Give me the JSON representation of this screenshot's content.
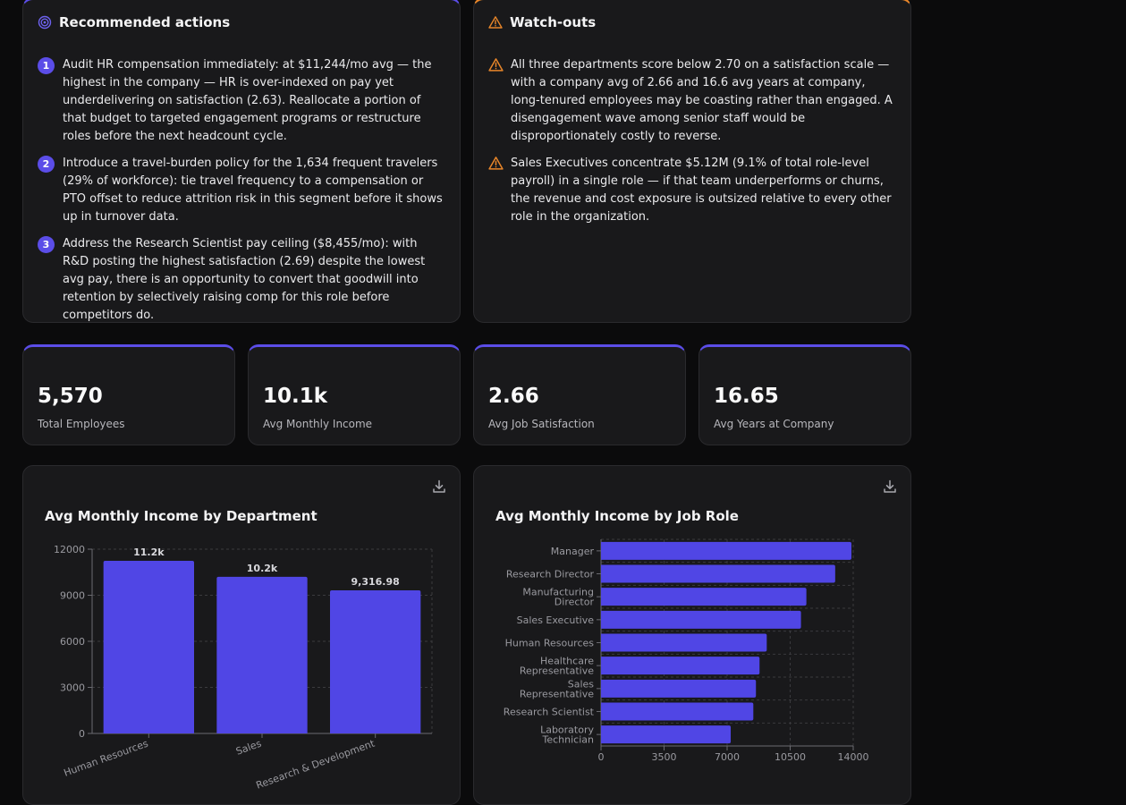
{
  "recommended": {
    "title": "Recommended actions",
    "items": [
      {
        "num": "1",
        "text": "Audit HR compensation immediately: at $11,244/mo avg — the highest in the company — HR is over-indexed on pay yet underdelivering on satisfaction (2.63). Reallocate a portion of that budget to targeted engagement programs or restructure roles before the next headcount cycle."
      },
      {
        "num": "2",
        "text": "Introduce a travel-burden policy for the 1,634 frequent travelers (29% of workforce): tie travel frequency to a compensation or PTO offset to reduce attrition risk in this segment before it shows up in turnover data."
      },
      {
        "num": "3",
        "text": "Address the Research Scientist pay ceiling ($8,455/mo): with R&D posting the highest satisfaction (2.69) despite the lowest avg pay, there is an opportunity to convert that goodwill into retention by selectively raising comp for this role before competitors do."
      }
    ]
  },
  "watchouts": {
    "title": "Watch-outs",
    "items": [
      {
        "text": "All three departments score below 2.70 on a satisfaction scale — with a company avg of 2.66 and 16.6 avg years at company, long-tenured employees may be coasting rather than engaged. A disengagement wave among senior staff would be disproportionately costly to reverse."
      },
      {
        "text": "Sales Executives concentrate $5.12M (9.1% of total role-level payroll) in a single role — if that team underperforms or churns, the revenue and cost exposure is outsized relative to every other role in the organization."
      }
    ]
  },
  "kpis": [
    {
      "value": "5,570",
      "label": "Total Employees"
    },
    {
      "value": "10.1k",
      "label": "Avg Monthly Income"
    },
    {
      "value": "2.66",
      "label": "Avg Job Satisfaction"
    },
    {
      "value": "16.65",
      "label": "Avg Years at Company"
    }
  ],
  "colors": {
    "accent": "#5b4de8",
    "warning": "#e8862a",
    "bar": "#5046e5"
  },
  "chart_data": [
    {
      "type": "bar",
      "title": "Avg Monthly Income by Department",
      "categories": [
        "Human Resources",
        "Sales",
        "Research & Development"
      ],
      "values": [
        11244,
        10200,
        9316.98
      ],
      "data_labels": [
        "11.2k",
        "10.2k",
        "9,316.98"
      ],
      "ylim": [
        0,
        12000
      ],
      "yticks": [
        0,
        3000,
        6000,
        9000,
        12000
      ],
      "ytick_labels": [
        "0",
        "3000",
        "6000",
        "9000",
        "12000"
      ],
      "grid": true
    },
    {
      "type": "bar",
      "orientation": "horizontal",
      "title": "Avg Monthly Income by Job Role",
      "categories": [
        [
          "Manager"
        ],
        [
          "Research Director"
        ],
        [
          "Manufacturing",
          "Director"
        ],
        [
          "Sales Executive"
        ],
        [
          "Human Resources"
        ],
        [
          "Healthcare",
          "Representative"
        ],
        [
          "Sales",
          "Representative"
        ],
        [
          "Research Scientist"
        ],
        [
          "Laboratory",
          "Technician"
        ]
      ],
      "values": [
        13900,
        13000,
        11400,
        11100,
        9200,
        8800,
        8600,
        8455,
        7200
      ],
      "xlim": [
        0,
        14000
      ],
      "xticks": [
        0,
        3500,
        7000,
        10500,
        14000
      ],
      "xtick_labels": [
        "0",
        "3500",
        "7000",
        "10500",
        "14000"
      ],
      "grid": true
    }
  ]
}
